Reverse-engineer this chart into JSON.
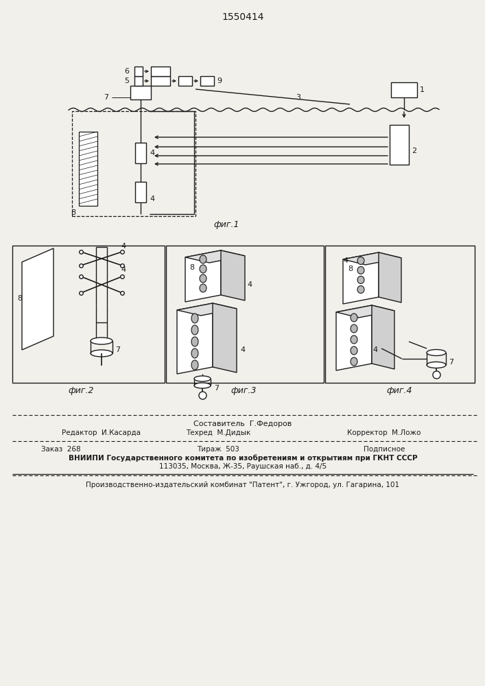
{
  "title": "1550414",
  "fig1_caption": "фиг.1",
  "fig2_caption": "фиг.2",
  "fig3_caption": "фиг.3",
  "fig4_caption": "фиг.4",
  "bg_color": "#f2f0eb",
  "lc": "#1a1a1a",
  "footer_sestavitel": "Составитель  Г.Федоров",
  "footer_editor": "Редактор  И.Касарда",
  "footer_tekhred": "Техред  М.Дидык",
  "footer_korrektor": "Корректор  М.Ложо",
  "footer_zakaz": "Заказ  268",
  "footer_tirazh": "Тираж  503",
  "footer_podpisnoe": "Подписное",
  "footer_vniipи": "ВНИИПИ Государственного комитета по изобретениям и открытиям при ГКНТ СССР",
  "footer_addr": "113035, Москва, Ж-35, Раушская наб., д. 4/5",
  "footer_patent": "Производственно-издательский комбинат \"Патент\", г. Ужгород, ул. Гагарина, 101"
}
